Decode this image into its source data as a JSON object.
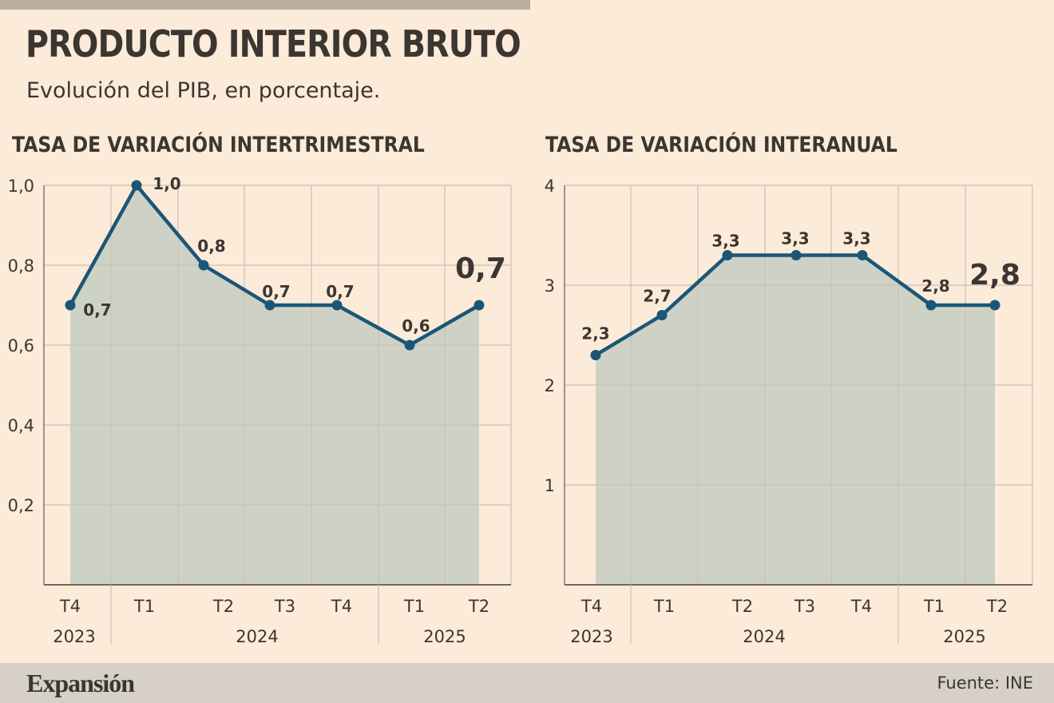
{
  "header": {
    "title": "PRODUCTO INTERIOR BRUTO",
    "subtitle": "Evolución del PIB, en porcentaje."
  },
  "footer": {
    "brand": "Expansión",
    "source": "Fuente: INE"
  },
  "colors": {
    "line": "#1c5676",
    "area": "#ced2c6",
    "grid": "#c9c0b3",
    "text": "#3b3631",
    "background": "#fcebd8"
  },
  "chart_data": [
    {
      "type": "area",
      "title": "TASA DE VARIACIÓN INTERTRIMESTRAL",
      "categories": [
        "T4",
        "T1",
        "T2",
        "T3",
        "T4",
        "T1",
        "T2"
      ],
      "years": [
        {
          "label": "2023",
          "span": [
            0,
            0
          ]
        },
        {
          "label": "2024",
          "span": [
            1,
            4
          ]
        },
        {
          "label": "2025",
          "span": [
            5,
            6
          ]
        }
      ],
      "values": [
        0.7,
        1.0,
        0.8,
        0.7,
        0.7,
        0.6,
        0.7
      ],
      "labels": [
        "0,7",
        "1,0",
        "0,8",
        "0,7",
        "0,7",
        "0,6",
        "0,7"
      ],
      "highlight_last": true,
      "ylim": [
        0,
        1.0
      ],
      "yticks": [
        0.2,
        0.4,
        0.6,
        0.8,
        1.0
      ],
      "ytick_labels": [
        "0,2",
        "0,4",
        "0,6",
        "0,8",
        "1,0"
      ],
      "grid": true
    },
    {
      "type": "area",
      "title": "TASA DE VARIACIÓN INTERANUAL",
      "categories": [
        "T4",
        "T1",
        "T2",
        "T3",
        "T4",
        "T1",
        "T2"
      ],
      "years": [
        {
          "label": "2023",
          "span": [
            0,
            0
          ]
        },
        {
          "label": "2024",
          "span": [
            1,
            4
          ]
        },
        {
          "label": "2025",
          "span": [
            5,
            6
          ]
        }
      ],
      "values": [
        2.3,
        2.7,
        3.3,
        3.3,
        3.3,
        2.8,
        2.8
      ],
      "labels": [
        "2,3",
        "2,7",
        "3,3",
        "3,3",
        "3,3",
        "2,8",
        "2,8"
      ],
      "highlight_last": true,
      "ylim": [
        0,
        4
      ],
      "yticks": [
        1,
        2,
        3,
        4
      ],
      "ytick_labels": [
        "1",
        "2",
        "3",
        "4"
      ],
      "grid": true
    }
  ]
}
